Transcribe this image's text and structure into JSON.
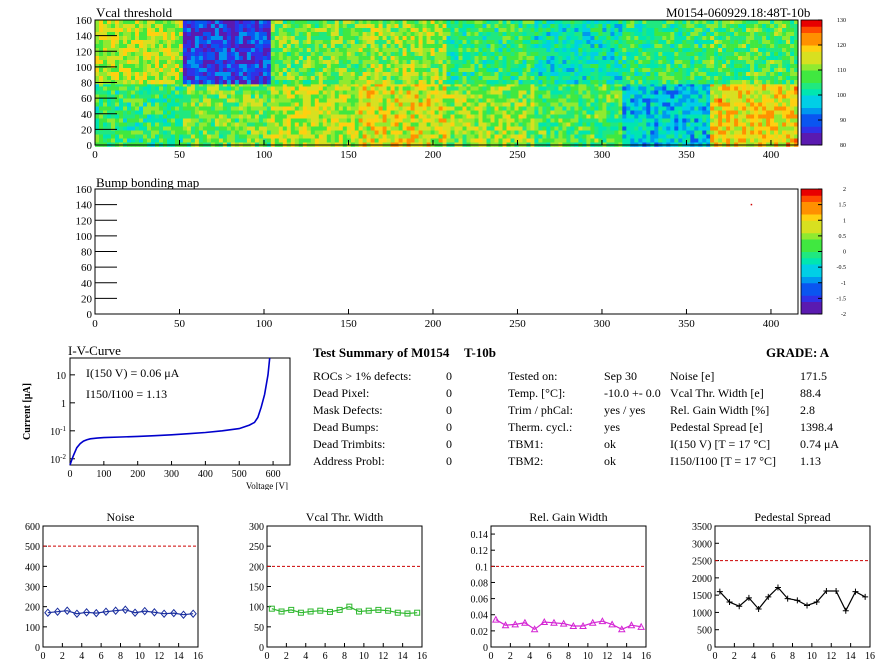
{
  "header": {
    "heatmap1_title": "Vcal threshold",
    "module_id": "M0154-060929.18:48T-10b",
    "heatmap2_title": "Bump bonding map"
  },
  "summary": {
    "title": "Test Summary of M0154",
    "temp_label": "T-10b",
    "grade": "GRADE:  A",
    "left_rows": [
      {
        "label": "ROCs > 1% defects:",
        "value": "0"
      },
      {
        "label": "Dead Pixel:",
        "value": "0"
      },
      {
        "label": "Mask Defects:",
        "value": "0"
      },
      {
        "label": "Dead Bumps:",
        "value": "0"
      },
      {
        "label": "Dead Trimbits:",
        "value": "0"
      },
      {
        "label": "Address Probl:",
        "value": "0"
      }
    ],
    "mid_rows": [
      {
        "label": "Tested on:",
        "value": "Sep 30"
      },
      {
        "label": "Temp. [°C]:",
        "value": "-10.0 +- 0.0"
      },
      {
        "label": "Trim / phCal:",
        "value": "yes / yes"
      },
      {
        "label": "Therm. cycl.:",
        "value": "yes"
      },
      {
        "label": "TBM1:",
        "value": "ok"
      },
      {
        "label": "TBM2:",
        "value": "ok"
      }
    ],
    "right_rows": [
      {
        "label": "Noise [e]",
        "value": "171.5"
      },
      {
        "label": "Vcal Thr. Width [e]",
        "value": "88.4"
      },
      {
        "label": "Rel. Gain Width [%]",
        "value": "2.8"
      },
      {
        "label": "Pedestal Spread [e]",
        "value": "1398.4"
      },
      {
        "label": "I(150 V) [T = 17 °C]",
        "value": "0.74 μA"
      },
      {
        "label": "I150/I100  [T = 17 °C]",
        "value": "1.13"
      }
    ]
  },
  "chart_data": [
    {
      "type": "heatmap",
      "title": "Vcal threshold",
      "xlim": [
        0,
        416
      ],
      "ylim": [
        0,
        160
      ],
      "xticks": [
        0,
        50,
        100,
        150,
        200,
        250,
        300,
        350,
        400
      ],
      "yticks": [
        0,
        20,
        40,
        60,
        80,
        100,
        120,
        140,
        160
      ],
      "colorbar_range": [
        80,
        130
      ],
      "colorbar_ticks": [
        80,
        90,
        100,
        110,
        120,
        130
      ],
      "roc_grid": {
        "columns": 8,
        "rows": 2,
        "roc_width": 52,
        "roc_height": 80
      },
      "roc_mean_top": [
        112,
        86,
        108,
        110,
        104,
        100,
        104,
        106
      ],
      "roc_mean_bottom": [
        104,
        108,
        112,
        114,
        110,
        106,
        96,
        116
      ],
      "palette": [
        "#5a1ab0",
        "#3030e8",
        "#0a55f0",
        "#0098ef",
        "#00cfe6",
        "#00e6b0",
        "#20e880",
        "#40e840",
        "#90ea30",
        "#d8e020",
        "#ffd010",
        "#ff9000",
        "#ff4a00",
        "#e80000"
      ]
    },
    {
      "type": "heatmap",
      "title": "Bump bonding map",
      "xlim": [
        0,
        416
      ],
      "ylim": [
        0,
        160
      ],
      "xticks": [
        0,
        50,
        100,
        150,
        200,
        250,
        300,
        350,
        400
      ],
      "yticks": [
        0,
        20,
        40,
        60,
        80,
        100,
        120,
        140,
        160
      ],
      "colorbar_range": [
        -2,
        2
      ],
      "colorbar_ticks": [
        "-2",
        "-1.5",
        "-1",
        "-0.5",
        "0",
        "0.5",
        "1",
        "1.5",
        "2"
      ],
      "points": [
        {
          "x": 388,
          "y": 141,
          "value": 2
        }
      ]
    },
    {
      "type": "line",
      "title": "I-V-Curve",
      "xlabel": "Voltage [V]",
      "ylabel": "Current [μA]",
      "xlim": [
        0,
        650
      ],
      "ylim": [
        0.006,
        40
      ],
      "ylog": true,
      "xticks": [
        0,
        100,
        200,
        300,
        400,
        500,
        600
      ],
      "yticks": [
        {
          "v": 0.01,
          "t": "10-2"
        },
        {
          "v": 0.1,
          "t": "10-1"
        },
        {
          "v": 1,
          "t": "1"
        },
        {
          "v": 10,
          "t": "10"
        }
      ],
      "annotation1": "I(150 V) = 0.06 μA",
      "annotation2": "I150/I100 =  1.13",
      "x": [
        0,
        5,
        10,
        20,
        30,
        40,
        50,
        60,
        80,
        100,
        150,
        200,
        250,
        300,
        350,
        400,
        450,
        500,
        530,
        545,
        555,
        565,
        575,
        585,
        590
      ],
      "y": [
        0.006,
        0.009,
        0.013,
        0.025,
        0.035,
        0.043,
        0.048,
        0.052,
        0.055,
        0.057,
        0.06,
        0.063,
        0.067,
        0.072,
        0.079,
        0.087,
        0.1,
        0.12,
        0.16,
        0.2,
        0.3,
        0.7,
        2.0,
        10,
        40
      ],
      "color": "#0000cc"
    },
    {
      "type": "line",
      "title": "Noise",
      "xlim": [
        0,
        16
      ],
      "ylim": [
        0,
        600
      ],
      "xticks": [
        0,
        2,
        4,
        6,
        8,
        10,
        12,
        14,
        16
      ],
      "yticks": [
        0,
        100,
        200,
        300,
        400,
        500,
        600
      ],
      "limit": 500,
      "x": [
        0.5,
        1.5,
        2.5,
        3.5,
        4.5,
        5.5,
        6.5,
        7.5,
        8.5,
        9.5,
        10.5,
        11.5,
        12.5,
        13.5,
        14.5,
        15.5
      ],
      "y": [
        170,
        175,
        180,
        165,
        172,
        168,
        175,
        180,
        185,
        170,
        178,
        172,
        165,
        168,
        160,
        165
      ],
      "color": "#1a2e9e",
      "marker": "diamond"
    },
    {
      "type": "line",
      "title": "Vcal Thr. Width",
      "xlim": [
        0,
        16
      ],
      "ylim": [
        0,
        300
      ],
      "xticks": [
        0,
        2,
        4,
        6,
        8,
        10,
        12,
        14,
        16
      ],
      "yticks": [
        0,
        50,
        100,
        150,
        200,
        250,
        300
      ],
      "limit": 200,
      "x": [
        0.5,
        1.5,
        2.5,
        3.5,
        4.5,
        5.5,
        6.5,
        7.5,
        8.5,
        9.5,
        10.5,
        11.5,
        12.5,
        13.5,
        14.5,
        15.5
      ],
      "y": [
        95,
        88,
        92,
        85,
        88,
        90,
        87,
        92,
        100,
        88,
        90,
        92,
        90,
        85,
        83,
        85
      ],
      "color": "#2fb82f",
      "marker": "square"
    },
    {
      "type": "line",
      "title": "Rel. Gain Width",
      "xlim": [
        0,
        16
      ],
      "ylim": [
        0,
        0.15
      ],
      "xticks": [
        0,
        2,
        4,
        6,
        8,
        10,
        12,
        14,
        16
      ],
      "yticks": [
        0,
        0.02,
        0.04,
        0.06,
        0.08,
        0.1,
        0.12,
        0.14
      ],
      "limit": 0.1,
      "x": [
        0.5,
        1.5,
        2.5,
        3.5,
        4.5,
        5.5,
        6.5,
        7.5,
        8.5,
        9.5,
        10.5,
        11.5,
        12.5,
        13.5,
        14.5,
        15.5
      ],
      "y": [
        0.034,
        0.027,
        0.028,
        0.03,
        0.022,
        0.031,
        0.03,
        0.029,
        0.026,
        0.026,
        0.03,
        0.032,
        0.028,
        0.022,
        0.027,
        0.025
      ],
      "color": "#d424d4",
      "marker": "triangle"
    },
    {
      "type": "line",
      "title": "Pedestal Spread",
      "xlim": [
        0,
        16
      ],
      "ylim": [
        0,
        3500
      ],
      "xticks": [
        0,
        2,
        4,
        6,
        8,
        10,
        12,
        14,
        16
      ],
      "yticks": [
        0,
        500,
        1000,
        1500,
        2000,
        2500,
        3000,
        3500
      ],
      "limit": 2500,
      "x": [
        0.5,
        1.5,
        2.5,
        3.5,
        4.5,
        5.5,
        6.5,
        7.5,
        8.5,
        9.5,
        10.5,
        11.5,
        12.5,
        13.5,
        14.5,
        15.5
      ],
      "y": [
        1600,
        1300,
        1180,
        1420,
        1100,
        1450,
        1720,
        1400,
        1350,
        1200,
        1300,
        1620,
        1620,
        1050,
        1600,
        1450
      ],
      "color": "#000000",
      "marker": "star"
    }
  ]
}
